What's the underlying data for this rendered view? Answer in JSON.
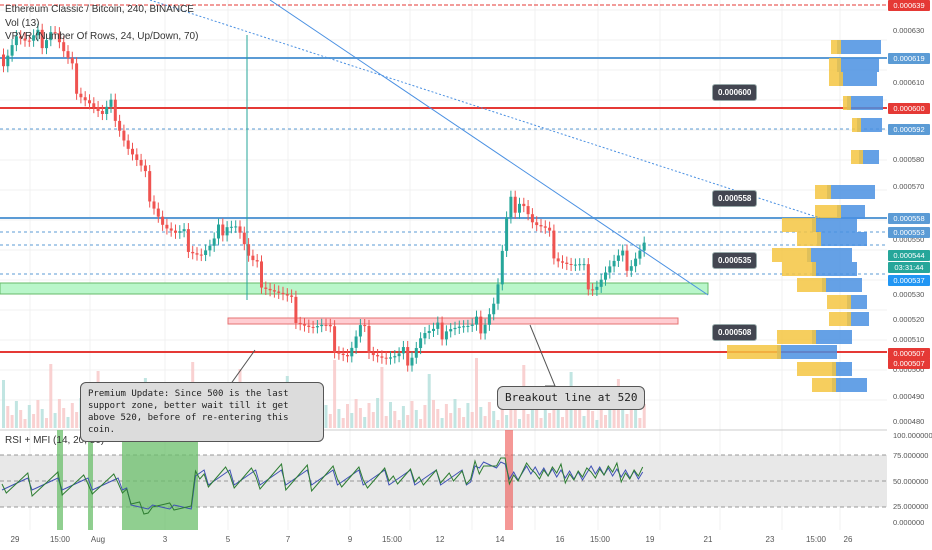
{
  "header": {
    "title": "Ethereum Classic / Bitcoin, 240, BINANCE",
    "vol": "Vol (13)",
    "vpvr": "VPVR (Number Of Rows, 24, Up/Down, 70)",
    "rsi": "RSI + MFI (14, 20, 80)"
  },
  "annotations": {
    "premium": "Premium Update: Since 500 is the last support zone, better wait till it get above 520, before of re-entering this coin.",
    "breakout": "Breakout line at 520"
  },
  "price_boxes": [
    "0.000600",
    "0.000558",
    "0.000535",
    "0.000508"
  ],
  "y_axis_ticks": [
    "0.000630",
    "0.000610",
    "0.000580",
    "0.000570",
    "0.000550",
    "0.000530",
    "0.000520",
    "0.000510",
    "0.000500",
    "0.000490",
    "0.000480"
  ],
  "price_tags": [
    {
      "label": "0.000639",
      "color": "#e53935"
    },
    {
      "label": "0.000619",
      "color": "#5b9bd5"
    },
    {
      "label": "0.000600",
      "color": "#e53935"
    },
    {
      "label": "0.000592",
      "color": "#5b9bd5"
    },
    {
      "label": "0.000558",
      "color": "#5b9bd5"
    },
    {
      "label": "0.000553",
      "color": "#5b9bd5"
    },
    {
      "label": "0.000544",
      "color": "#26a69a"
    },
    {
      "label": "03:31:44",
      "color": "#26a69a"
    },
    {
      "label": "0.000537",
      "color": "#2196f3"
    },
    {
      "label": "0.000507",
      "color": "#e53935"
    },
    {
      "label": "0.000507",
      "color": "#e53935"
    }
  ],
  "rsi_ticks": [
    "100.000000",
    "75.000000",
    "50.000000",
    "25.000000",
    "0.000000"
  ],
  "x_axis_labels": [
    "29",
    "15:00",
    "Aug",
    "3",
    "5",
    "7",
    "9",
    "15:00",
    "12",
    "14",
    "16",
    "15:00",
    "19",
    "21",
    "23",
    "15:00",
    "26"
  ],
  "colors": {
    "up": "#26a69a",
    "down": "#ef5350",
    "hline_blue": "#5b9bd5",
    "hline_red": "#e53935",
    "zone_green": "#b9f6ca",
    "zone_red": "#ffcdd2"
  },
  "chart_data": {
    "type": "candlestick",
    "price_range": [
      0.000475,
      0.000645
    ],
    "close_approx": [
      0.000622,
      0.000631,
      0.000625,
      0.000628,
      0.000634,
      0.00062,
      0.00061,
      0.000603,
      0.000595,
      0.0006,
      0.000585,
      0.000575,
      0.000565,
      0.000552,
      0.000546,
      0.000545,
      0.00054,
      0.000542,
      0.000555,
      0.000552,
      0.000535,
      0.00053,
      0.000525,
      0.00052,
      0.000515,
      0.00051,
      0.000508,
      0.000503,
      0.000498,
      0.000508,
      0.000502,
      0.000497,
      0.000495,
      0.000499,
      0.000507,
      0.000506,
      0.000512,
      0.00051,
      0.000507,
      0.000513,
      0.000522,
      0.000558,
      0.000565,
      0.000552,
      0.000547,
      0.00054,
      0.000535,
      0.000532,
      0.000528,
      0.000533,
      0.000536,
      0.000538,
      0.000544
    ],
    "rsi": {
      "range": [
        0,
        100
      ],
      "bands": [
        20,
        80
      ]
    }
  }
}
